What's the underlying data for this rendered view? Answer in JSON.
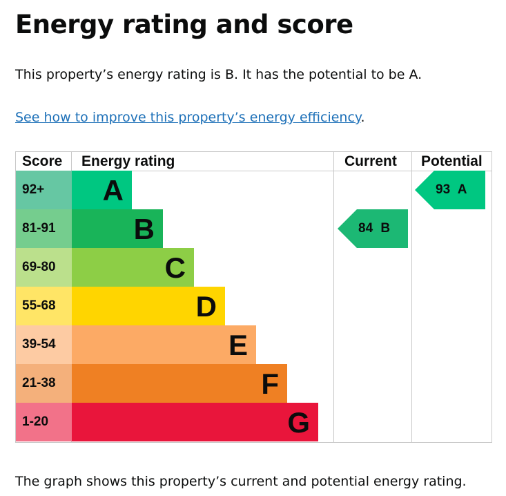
{
  "title": "Energy rating and score",
  "intro": "This property’s energy rating is B. It has the potential to be A.",
  "link": "See how to improve this property’s energy efficiency",
  "link_suffix": ".",
  "headers": {
    "score": "Score",
    "rating": "Energy rating",
    "current": "Current",
    "potential": "Potential"
  },
  "bands": [
    {
      "score": "92+",
      "letter": "A",
      "color": "#00c781",
      "light": "#66c7a3"
    },
    {
      "score": "81-91",
      "letter": "B",
      "color": "#19b459",
      "light": "#75cd8e"
    },
    {
      "score": "69-80",
      "letter": "C",
      "color": "#8dce46",
      "light": "#bbe08c"
    },
    {
      "score": "55-68",
      "letter": "D",
      "color": "#ffd500",
      "light": "#ffe566"
    },
    {
      "score": "39-54",
      "letter": "E",
      "color": "#fcaa65",
      "light": "#fdcba3"
    },
    {
      "score": "21-38",
      "letter": "F",
      "color": "#ef8023",
      "light": "#f4b07b"
    },
    {
      "score": "1-20",
      "letter": "G",
      "color": "#e9153b",
      "light": "#f27289"
    }
  ],
  "current": {
    "label": "84 B",
    "score": 84,
    "band": "B",
    "color": "#1cb874"
  },
  "potential": {
    "label": "93 A",
    "score": 93,
    "band": "A",
    "color": "#00c781"
  },
  "footer": "The graph shows this property’s current and potential energy rating."
}
